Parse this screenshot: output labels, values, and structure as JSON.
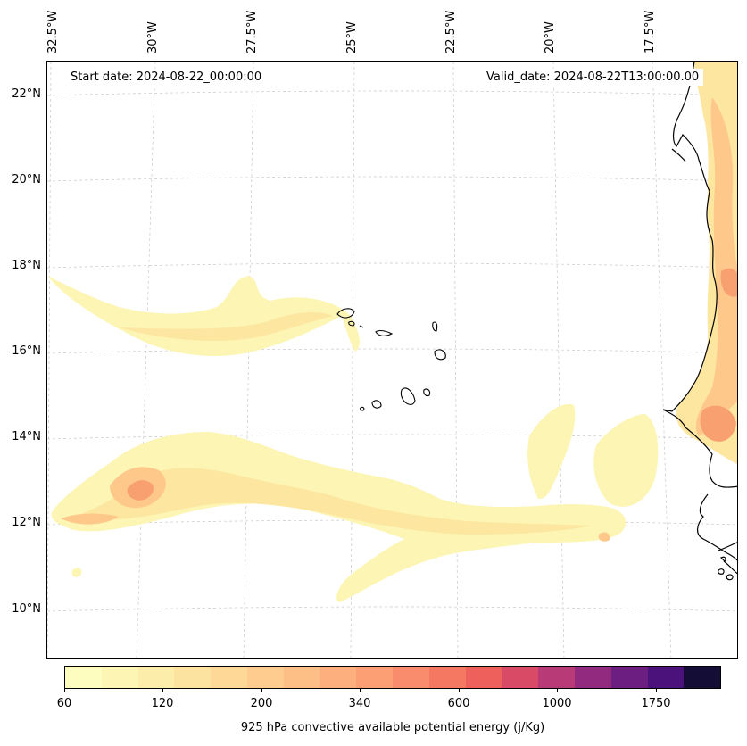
{
  "map": {
    "start_date": "Start date: 2024-08-22_00:00:00",
    "valid_date": "Valid_date: 2024-08-22T13:00:00.00",
    "longitude_labels": [
      "32.5°W",
      "30°W",
      "27.5°W",
      "25°W",
      "22.5°W",
      "20°W",
      "17.5°W"
    ],
    "latitude_labels": [
      "22°N",
      "20°N",
      "18°N",
      "16°N",
      "14°N",
      "12°N",
      "10°N"
    ],
    "field_colors": {
      "lowest": "#fcf5b4",
      "low": "#fde6a0",
      "mid": "#fdc88a",
      "high": "#f9a071",
      "peak": "#ec6e5e"
    },
    "coastline_color": "#000000"
  },
  "colorbar": {
    "label": "925 hPa convective available potential energy (j/Kg)",
    "ticks": [
      "60",
      "120",
      "200",
      "340",
      "600",
      "1000",
      "1750"
    ],
    "colors": [
      "#fcfdbf",
      "#fcf5b4",
      "#fdedaa",
      "#fde3a0",
      "#fed897",
      "#fecc8e",
      "#febf86",
      "#fdb07d",
      "#fc9f75",
      "#f98c6c",
      "#f57863",
      "#ed605b",
      "#d94a67",
      "#b83a76",
      "#922a80",
      "#6c1f80",
      "#4a127a",
      "#140e36"
    ]
  }
}
